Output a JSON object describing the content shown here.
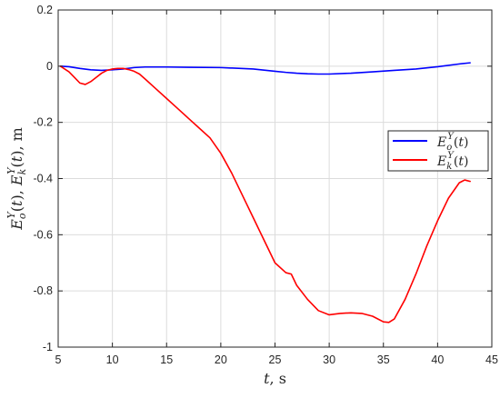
{
  "chart_data": {
    "type": "line",
    "xlabel": "t, s",
    "ylabel": "E_o^Y(t), E_k^Y(t), m",
    "xlim": [
      5,
      45
    ],
    "ylim": [
      -1,
      0.2
    ],
    "xticks": [
      5,
      10,
      15,
      20,
      25,
      30,
      35,
      40,
      45
    ],
    "yticks": [
      0.2,
      0,
      -0.2,
      -0.4,
      -0.6,
      -0.8,
      -1
    ],
    "xtick_labels": [
      "5",
      "10",
      "15",
      "20",
      "25",
      "30",
      "35",
      "40",
      "45"
    ],
    "ytick_labels": [
      "0.2",
      "0",
      "-0.2",
      "-0.4",
      "-0.6",
      "-0.8",
      "-1"
    ],
    "grid": true,
    "legend_position": "right",
    "series": [
      {
        "name": "E_o^Y(t)",
        "color": "#0000ff",
        "x": [
          5.2,
          6,
          7,
          8,
          9,
          10,
          11,
          12,
          13,
          15,
          17,
          20,
          23,
          25,
          26,
          27,
          28,
          29,
          30,
          32,
          34,
          36,
          38,
          40,
          42,
          43
        ],
        "y": [
          0.0,
          -0.002,
          -0.008,
          -0.013,
          -0.015,
          -0.013,
          -0.01,
          -0.005,
          -0.003,
          -0.003,
          -0.004,
          -0.005,
          -0.01,
          -0.018,
          -0.022,
          -0.025,
          -0.027,
          -0.028,
          -0.028,
          -0.025,
          -0.02,
          -0.015,
          -0.01,
          -0.002,
          0.008,
          0.012
        ]
      },
      {
        "name": "E_k^Y(t)",
        "color": "#ff0000",
        "x": [
          5.2,
          6,
          6.5,
          7,
          7.5,
          8,
          8.5,
          9,
          9.5,
          10,
          10.5,
          11,
          11.5,
          12,
          12.5,
          13,
          14,
          15,
          16,
          17,
          18,
          19,
          20,
          21,
          22,
          23,
          24,
          25,
          26,
          26.5,
          27,
          28,
          29,
          30,
          31,
          32,
          33,
          34,
          35,
          35.5,
          36,
          37,
          38,
          39,
          40,
          41,
          42,
          42.5,
          43
        ],
        "y": [
          0.0,
          -0.02,
          -0.04,
          -0.06,
          -0.065,
          -0.055,
          -0.04,
          -0.025,
          -0.015,
          -0.01,
          -0.008,
          -0.008,
          -0.012,
          -0.018,
          -0.028,
          -0.045,
          -0.08,
          -0.115,
          -0.15,
          -0.185,
          -0.22,
          -0.255,
          -0.31,
          -0.38,
          -0.46,
          -0.54,
          -0.62,
          -0.7,
          -0.735,
          -0.74,
          -0.78,
          -0.83,
          -0.87,
          -0.885,
          -0.88,
          -0.878,
          -0.88,
          -0.89,
          -0.91,
          -0.912,
          -0.9,
          -0.83,
          -0.74,
          -0.64,
          -0.55,
          -0.47,
          -0.415,
          -0.405,
          -0.41
        ]
      }
    ]
  }
}
